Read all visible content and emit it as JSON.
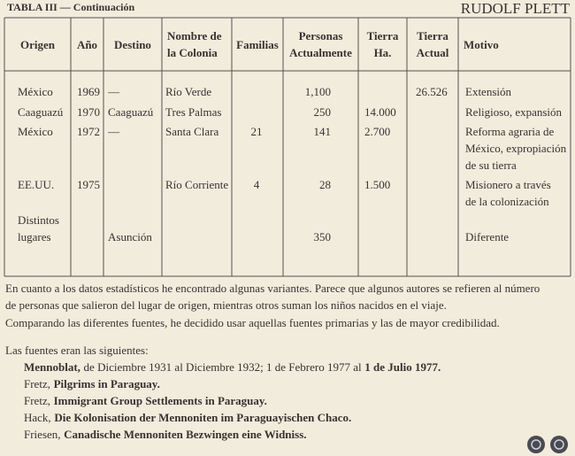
{
  "header": {
    "caption": "TABLA III — Continuación",
    "author": "RUDOLF PLETT"
  },
  "table": {
    "headers": [
      [
        "Origen"
      ],
      [
        "Año"
      ],
      [
        "Destino"
      ],
      [
        "Nombre de",
        "la Colonia"
      ],
      [
        "Familias"
      ],
      [
        "Personas",
        "Actualmente"
      ],
      [
        "Tierra",
        "Ha."
      ],
      [
        "Tierra",
        "Actual"
      ],
      [
        "Motivo"
      ]
    ],
    "rows": [
      [
        [
          "México"
        ],
        [
          "1969"
        ],
        [
          "—"
        ],
        [
          "Río Verde"
        ],
        null,
        [
          "1,100"
        ],
        null,
        [
          "26.526"
        ],
        [
          "Extensión"
        ]
      ],
      [
        [
          "Caaguazú"
        ],
        [
          "1970"
        ],
        [
          "Caaguazú"
        ],
        [
          "Tres Palmas"
        ],
        null,
        [
          "250"
        ],
        [
          "14.000"
        ],
        null,
        [
          "Religioso, expansión"
        ]
      ],
      [
        [
          "México"
        ],
        [
          "1972"
        ],
        [
          "—"
        ],
        [
          "Santa Clara"
        ],
        [
          "21"
        ],
        [
          "141"
        ],
        [
          "2.700"
        ],
        null,
        [
          "Reforma agraria de",
          "México, expropiación",
          "de su tierra"
        ]
      ],
      [
        [
          "EE.UU."
        ],
        [
          "1975"
        ],
        null,
        [
          "Río Corriente"
        ],
        [
          "4"
        ],
        [
          "28"
        ],
        [
          "1.500"
        ],
        null,
        [
          "Misionero a través",
          "de la colonización"
        ]
      ],
      [
        [
          "Distintos",
          "lugares"
        ],
        null,
        [
          "Asunción"
        ],
        null,
        null,
        [
          "350"
        ],
        null,
        null,
        [
          "Diferente"
        ]
      ]
    ]
  },
  "paragraphs": [
    [
      "En cuanto a los datos estadísticos he encontrado algunas variantes. Parece que algunos autores se refieren al número",
      "de personas que salieron del lugar de origen, mientras otros suman los niños nacidos en el viaje."
    ],
    [
      "Comparando las diferentes fuentes, he decidido usar aquellas fuentes primarias y las de mayor credibilidad."
    ],
    [
      "Las fuentes eran las siguientes:"
    ]
  ],
  "sources": [
    [
      {
        "text": "Mennoblat,",
        "bold": true
      },
      {
        "text": "de Diciembre 1931 al Diciembre 1932; 1 de Febrero 1977 al",
        "bold": false
      },
      {
        "text": "1 de Julio 1977.",
        "bold": true
      }
    ],
    [
      {
        "text": "Fretz,",
        "bold": false
      },
      {
        "text": "Pilgrims in Paraguay.",
        "bold": true
      }
    ],
    [
      {
        "text": "Fretz,",
        "bold": false
      },
      {
        "text": "Immigrant Group Settlements in Paraguay.",
        "bold": true
      }
    ],
    [
      {
        "text": "Hack,",
        "bold": false
      },
      {
        "text": "Die Kolonisation der Mennoniten im Paraguayischen Chaco.",
        "bold": true
      }
    ],
    [
      {
        "text": "Friesen,",
        "bold": false
      },
      {
        "text": "Canadische Mennoniten Bezwingen eine Widniss.",
        "bold": true
      }
    ]
  ]
}
